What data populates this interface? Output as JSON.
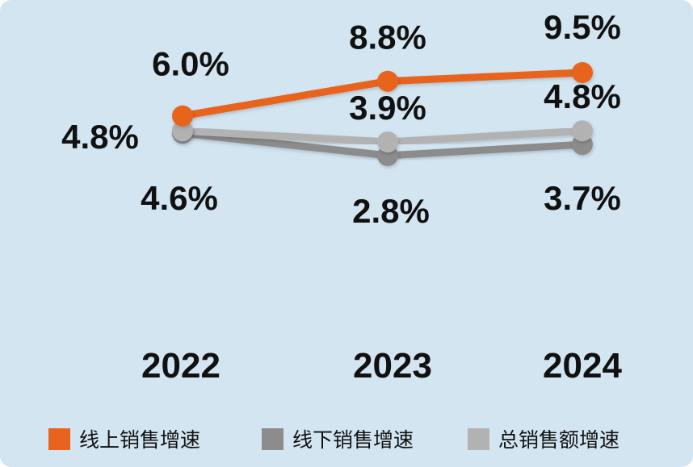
{
  "chart_data": {
    "type": "line",
    "categories": [
      "2022",
      "2023",
      "2024"
    ],
    "series": [
      {
        "name": "线上销售增速",
        "values": [
          6.0,
          8.8,
          9.5
        ],
        "labels": [
          "6.0%",
          "8.8%",
          "9.5%"
        ],
        "color": "#e8641e"
      },
      {
        "name": "线下销售增速",
        "values": [
          4.6,
          2.8,
          3.7
        ],
        "labels": [
          "4.6%",
          "2.8%",
          "3.7%"
        ],
        "color": "#8c8c8c"
      },
      {
        "name": "总销售额增速",
        "values": [
          4.8,
          3.9,
          4.8
        ],
        "labels": [
          "4.8%",
          "3.9%",
          "4.8%"
        ],
        "color": "#b2b2b2"
      }
    ],
    "legend_position": "bottom",
    "grid": false
  }
}
